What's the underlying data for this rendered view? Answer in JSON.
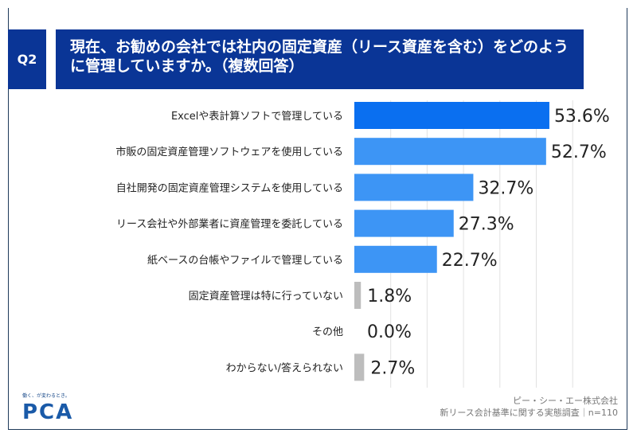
{
  "header": {
    "q_label": "Q2",
    "title": "現在、お勧めの会社では社内の固定資産（リース資産を含む）をどのように管理していますか。（複数回答）"
  },
  "footer": {
    "logo_tagline": "働く、が変わるとき。",
    "logo": "PCA",
    "company": "ピー・シー・エー株式会社",
    "survey": "新リース会計基準に関する実態調査｜n=110"
  },
  "colors": {
    "top": "#0a6ff0",
    "blue": "#3d95f5",
    "gray": "#bdbdbd",
    "header": "#0a3596"
  },
  "chart_data": {
    "type": "bar",
    "orientation": "horizontal",
    "title": "",
    "xlabel": "",
    "ylabel": "",
    "xlim": [
      0,
      60
    ],
    "grid": true,
    "categories": [
      "Excelや表計算ソフトで管理している",
      "市販の固定資産管理ソフトウェアを使用している",
      "自社開発の固定資産管理システムを使用している",
      "リース会社や外部業者に資産管理を委託している",
      "紙ベースの台帳やファイルで管理している",
      "固定資産管理は特に行っていない",
      "その他",
      "わからない/答えられない"
    ],
    "values": [
      53.6,
      52.7,
      32.7,
      27.3,
      22.7,
      1.8,
      0.0,
      2.7
    ],
    "labels": [
      "53.6%",
      "52.7%",
      "32.7%",
      "27.3%",
      "22.7%",
      "1.8%",
      "0.0%",
      "2.7%"
    ]
  }
}
